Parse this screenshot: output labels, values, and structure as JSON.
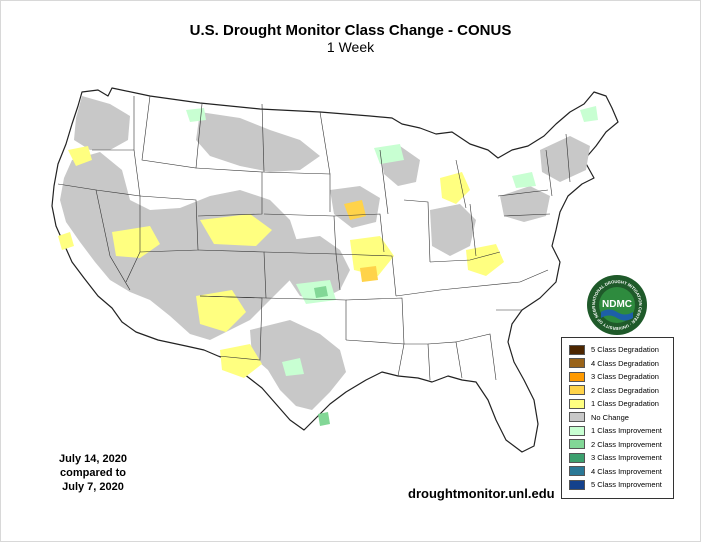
{
  "title": "U.S. Drought Monitor Class Change - CONUS",
  "subtitle": "1 Week",
  "date_lines": [
    "July 14, 2020",
    "compared to",
    "July 7, 2020"
  ],
  "website": "droughtmonitor.unl.edu",
  "logo": {
    "center_text": "NDMC",
    "ring_text": "NATIONAL DROUGHT MITIGATION CENTER · UNIVERSITY OF NEBRASKA",
    "icon": "ndmc-logo-icon"
  },
  "legend": [
    {
      "label": "5 Class Degradation",
      "color": "#4d2600"
    },
    {
      "label": "4 Class Degradation",
      "color": "#996319"
    },
    {
      "label": "3 Class Degradation",
      "color": "#ff9a00"
    },
    {
      "label": "2 Class Degradation",
      "color": "#ffd34a"
    },
    {
      "label": "1 Class Degradation",
      "color": "#ffff80"
    },
    {
      "label": "No Change",
      "color": "#c8c8c8"
    },
    {
      "label": "1 Class Improvement",
      "color": "#c8ffd2"
    },
    {
      "label": "2 Class Improvement",
      "color": "#82d796"
    },
    {
      "label": "3 Class Improvement",
      "color": "#3ca06e"
    },
    {
      "label": "4 Class Improvement",
      "color": "#2a7896"
    },
    {
      "label": "5 Class Improvement",
      "color": "#14418c"
    }
  ]
}
